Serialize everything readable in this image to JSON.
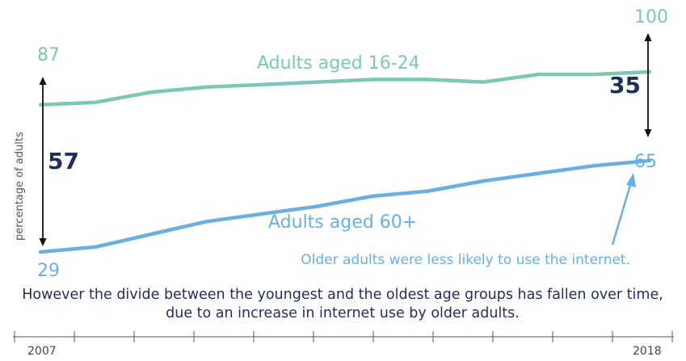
{
  "colors": {
    "young": "#7cc7b5",
    "old": "#6aaee2",
    "gap_text": "#1f2f5a",
    "arrow": "#111111",
    "axis": "#555555"
  },
  "chart_data": {
    "type": "line",
    "x": [
      2007,
      2008,
      2009,
      2010,
      2011,
      2012,
      2013,
      2014,
      2015,
      2016,
      2017,
      2018
    ],
    "xlim": [
      2007,
      2018
    ],
    "ylabel": "percentage of adults",
    "series": [
      {
        "name": "Adults aged 16-24",
        "values": [
          87,
          88,
          92,
          94,
          95,
          96,
          97,
          97,
          96,
          99,
          99,
          100
        ]
      },
      {
        "name": "Adults aged 60+",
        "values": [
          29,
          31,
          36,
          41,
          44,
          47,
          51,
          53,
          57,
          60,
          63,
          65
        ]
      }
    ],
    "end_labels": {
      "young_start": "87",
      "young_end": "100",
      "old_start": "29",
      "old_end": "65"
    },
    "gaps": {
      "start": "57",
      "end": "35"
    },
    "annotation": "Older adults were less likely to use the internet.",
    "caption_line1": "However the divide between the youngest and the oldest age groups has fallen over time,",
    "caption_line2": "due to an increase in internet use by older adults.",
    "x_tick_labels": {
      "first": "2007",
      "last": "2018"
    }
  }
}
